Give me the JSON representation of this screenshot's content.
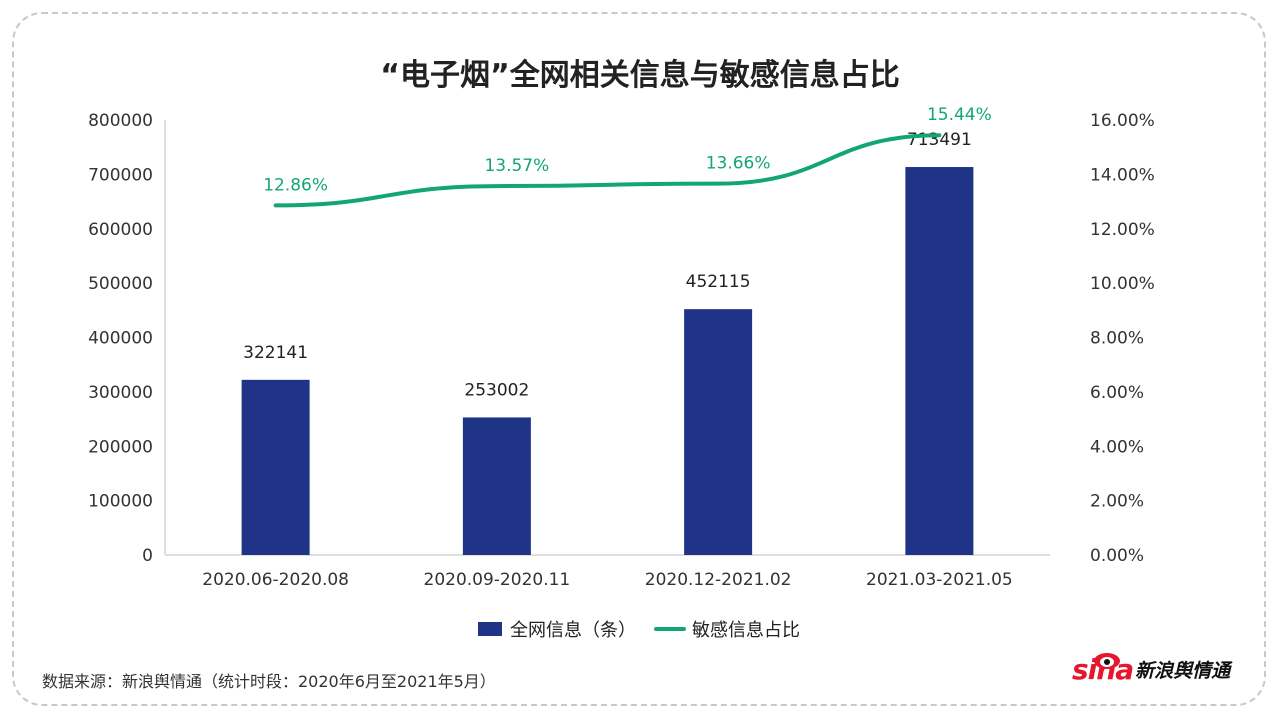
{
  "title": "“电子烟”全网相关信息与敏感信息占比",
  "footer": {
    "source": "数据来源：新浪舆情通（统计时段：2020年6月至2021年5月）"
  },
  "logo": {
    "mark": "sina",
    "text": "新浪舆情通"
  },
  "colors": {
    "bar": "#1f3487",
    "line": "#13a674",
    "axis_text": "#333333"
  },
  "chart_data": {
    "type": "bar",
    "title": "“电子烟”全网相关信息与敏感信息占比",
    "categories": [
      "2020.06-2020.08",
      "2020.09-2020.11",
      "2020.12-2021.02",
      "2021.03-2021.05"
    ],
    "series": [
      {
        "name": "全网信息（条）",
        "type": "bar",
        "axis": "left",
        "values": [
          322141,
          253002,
          452115,
          713491
        ],
        "labels": [
          "322141",
          "253002",
          "452115",
          "713491"
        ]
      },
      {
        "name": "敏感信息占比",
        "type": "line",
        "axis": "right",
        "values": [
          12.86,
          13.57,
          13.66,
          15.44
        ],
        "labels": [
          "12.86%",
          "13.57%",
          "13.66%",
          "15.44%"
        ]
      }
    ],
    "y_left": {
      "min": 0,
      "max": 800000,
      "step": 100000,
      "ticks": [
        "0",
        "100000",
        "200000",
        "300000",
        "400000",
        "500000",
        "600000",
        "700000",
        "800000"
      ]
    },
    "y_right": {
      "min": 0,
      "max": 16,
      "step": 2,
      "ticks": [
        "0.00%",
        "2.00%",
        "4.00%",
        "6.00%",
        "8.00%",
        "10.00%",
        "12.00%",
        "14.00%",
        "16.00%"
      ]
    },
    "legend_position": "bottom",
    "grid": false
  }
}
